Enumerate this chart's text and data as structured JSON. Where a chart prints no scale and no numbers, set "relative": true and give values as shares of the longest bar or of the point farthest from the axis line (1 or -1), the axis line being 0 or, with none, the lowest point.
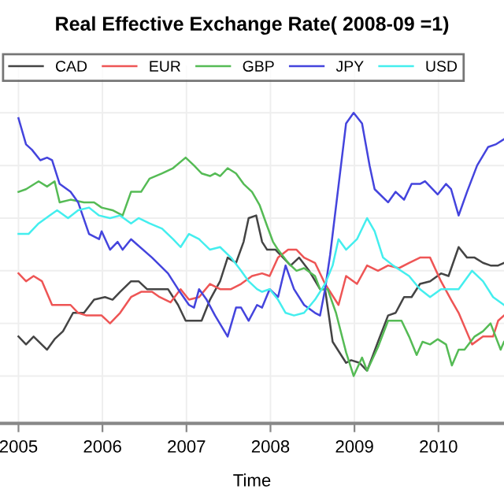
{
  "chart_data": {
    "type": "line",
    "title": "Real Effective Exchange Rate( 2008-09 =1)",
    "xlabel": "Time",
    "relative": true,
    "xlim": [
      2004.78,
      2010.78
    ],
    "xticks": [
      2005,
      2006,
      2007,
      2008,
      2009,
      2010
    ],
    "grid": true,
    "legend": "top left",
    "line_style": "solid",
    "series": [
      {
        "name": "CAD",
        "color": "#444444",
        "x": [
          2005.0,
          2005.09,
          2005.18,
          2005.34,
          2005.43,
          2005.53,
          2005.65,
          2005.78,
          2005.9,
          2006.03,
          2006.12,
          2006.21,
          2006.34,
          2006.43,
          2006.53,
          2006.65,
          2006.78,
          2006.9,
          2006.99,
          2007.09,
          2007.18,
          2007.28,
          2007.4,
          2007.49,
          2007.59,
          2007.68,
          2007.74,
          2007.83,
          2007.9,
          2007.96,
          2008.06,
          2008.15,
          2008.24,
          2008.34,
          2008.46,
          2008.59,
          2008.65,
          2008.74,
          2008.9,
          2008.96,
          2009.06,
          2009.15,
          2009.21,
          2009.28,
          2009.4,
          2009.49,
          2009.59,
          2009.68,
          2009.78,
          2009.9,
          2010.03,
          2010.12,
          2010.24,
          2010.34,
          2010.43,
          2010.53,
          2010.62,
          2010.71,
          2010.78
        ],
        "values": [
          0.15,
          0.12,
          0.15,
          0.1,
          0.14,
          0.17,
          0.24,
          0.24,
          0.29,
          0.3,
          0.29,
          0.32,
          0.36,
          0.36,
          0.33,
          0.33,
          0.33,
          0.27,
          0.21,
          0.21,
          0.21,
          0.29,
          0.36,
          0.45,
          0.43,
          0.51,
          0.6,
          0.61,
          0.51,
          0.48,
          0.48,
          0.45,
          0.42,
          0.45,
          0.4,
          0.33,
          0.33,
          0.13,
          0.05,
          0.06,
          0.05,
          0.02,
          0.07,
          0.13,
          0.23,
          0.24,
          0.3,
          0.3,
          0.35,
          0.36,
          0.39,
          0.38,
          0.49,
          0.45,
          0.45,
          0.43,
          0.42,
          0.42,
          0.43
        ]
      },
      {
        "name": "EUR",
        "color": "#ee5555",
        "x": [
          2005.0,
          2005.09,
          2005.18,
          2005.28,
          2005.4,
          2005.53,
          2005.62,
          2005.71,
          2005.81,
          2005.93,
          2005.99,
          2006.09,
          2006.21,
          2006.34,
          2006.46,
          2006.59,
          2006.68,
          2006.81,
          2006.93,
          2007.03,
          2007.15,
          2007.28,
          2007.4,
          2007.53,
          2007.65,
          2007.78,
          2007.9,
          2007.99,
          2008.09,
          2008.21,
          2008.31,
          2008.4,
          2008.53,
          2008.65,
          2008.81,
          2008.9,
          2009.03,
          2009.15,
          2009.28,
          2009.4,
          2009.53,
          2009.65,
          2009.78,
          2009.9,
          2010.03,
          2010.15,
          2010.24,
          2010.4,
          2010.53,
          2010.65,
          2010.71,
          2010.78
        ],
        "values": [
          0.39,
          0.36,
          0.38,
          0.36,
          0.27,
          0.27,
          0.27,
          0.24,
          0.23,
          0.23,
          0.23,
          0.2,
          0.24,
          0.3,
          0.32,
          0.32,
          0.3,
          0.28,
          0.33,
          0.29,
          0.3,
          0.35,
          0.33,
          0.33,
          0.35,
          0.38,
          0.39,
          0.38,
          0.45,
          0.48,
          0.48,
          0.45,
          0.43,
          0.35,
          0.27,
          0.38,
          0.35,
          0.42,
          0.4,
          0.42,
          0.41,
          0.43,
          0.45,
          0.45,
          0.36,
          0.29,
          0.24,
          0.12,
          0.15,
          0.15,
          0.21,
          0.23
        ]
      },
      {
        "name": "GBP",
        "color": "#55bb55",
        "x": [
          2005.0,
          2005.09,
          2005.24,
          2005.34,
          2005.43,
          2005.49,
          2005.62,
          2005.78,
          2005.9,
          2005.99,
          2006.12,
          2006.24,
          2006.34,
          2006.46,
          2006.56,
          2006.71,
          2006.84,
          2006.99,
          2007.09,
          2007.18,
          2007.28,
          2007.34,
          2007.4,
          2007.49,
          2007.59,
          2007.68,
          2007.78,
          2007.87,
          2007.96,
          2008.03,
          2008.09,
          2008.21,
          2008.31,
          2008.4,
          2008.53,
          2008.59,
          2008.68,
          2008.78,
          2008.9,
          2008.99,
          2009.09,
          2009.15,
          2009.28,
          2009.4,
          2009.56,
          2009.65,
          2009.74,
          2009.81,
          2009.9,
          2009.99,
          2010.09,
          2010.16,
          2010.24,
          2010.31,
          2010.43,
          2010.53,
          2010.62,
          2010.74,
          2010.78
        ],
        "values": [
          0.7,
          0.71,
          0.74,
          0.72,
          0.74,
          0.66,
          0.67,
          0.66,
          0.66,
          0.64,
          0.63,
          0.61,
          0.7,
          0.7,
          0.75,
          0.77,
          0.79,
          0.83,
          0.8,
          0.77,
          0.76,
          0.77,
          0.76,
          0.79,
          0.77,
          0.73,
          0.7,
          0.65,
          0.57,
          0.51,
          0.48,
          0.43,
          0.4,
          0.41,
          0.38,
          0.33,
          0.33,
          0.24,
          0.09,
          0.0,
          0.07,
          0.02,
          0.11,
          0.21,
          0.21,
          0.15,
          0.08,
          0.13,
          0.12,
          0.14,
          0.12,
          0.04,
          0.1,
          0.1,
          0.15,
          0.17,
          0.2,
          0.1,
          0.13
        ]
      },
      {
        "name": "JPY",
        "color": "#4444dd",
        "x": [
          2005.0,
          2005.09,
          2005.16,
          2005.26,
          2005.34,
          2005.4,
          2005.49,
          2005.62,
          2005.71,
          2005.84,
          2005.96,
          2005.99,
          2006.09,
          2006.18,
          2006.24,
          2006.34,
          2006.59,
          2006.78,
          2006.9,
          2007.03,
          2007.09,
          2007.15,
          2007.24,
          2007.34,
          2007.49,
          2007.59,
          2007.65,
          2007.74,
          2007.84,
          2007.9,
          2007.99,
          2008.09,
          2008.18,
          2008.28,
          2008.4,
          2008.53,
          2008.59,
          2008.65,
          2008.71,
          2008.9,
          2008.99,
          2009.09,
          2009.18,
          2009.24,
          2009.4,
          2009.49,
          2009.59,
          2009.68,
          2009.78,
          2009.84,
          2009.99,
          2010.09,
          2010.15,
          2010.24,
          2010.34,
          2010.46,
          2010.59,
          2010.68,
          2010.78
        ],
        "values": [
          0.98,
          0.88,
          0.86,
          0.82,
          0.83,
          0.82,
          0.73,
          0.7,
          0.66,
          0.54,
          0.52,
          0.55,
          0.48,
          0.51,
          0.48,
          0.52,
          0.45,
          0.39,
          0.33,
          0.27,
          0.26,
          0.33,
          0.29,
          0.23,
          0.15,
          0.26,
          0.26,
          0.21,
          0.27,
          0.26,
          0.33,
          0.3,
          0.42,
          0.33,
          0.27,
          0.24,
          0.23,
          0.33,
          0.46,
          0.96,
          1.0,
          0.96,
          0.8,
          0.71,
          0.66,
          0.7,
          0.67,
          0.73,
          0.73,
          0.74,
          0.69,
          0.73,
          0.71,
          0.61,
          0.7,
          0.8,
          0.87,
          0.88,
          0.9
        ]
      },
      {
        "name": "USD",
        "color": "#44eeee",
        "x": [
          2005.0,
          2005.12,
          2005.24,
          2005.37,
          2005.46,
          2005.59,
          2005.71,
          2005.84,
          2005.96,
          2006.09,
          2006.21,
          2006.34,
          2006.43,
          2006.56,
          2006.71,
          2006.84,
          2006.93,
          2007.03,
          2007.15,
          2007.28,
          2007.4,
          2007.53,
          2007.65,
          2007.74,
          2007.84,
          2007.9,
          2007.99,
          2008.09,
          2008.18,
          2008.28,
          2008.4,
          2008.53,
          2008.65,
          2008.74,
          2008.81,
          2008.9,
          2009.03,
          2009.15,
          2009.24,
          2009.34,
          2009.46,
          2009.65,
          2009.78,
          2009.9,
          2010.03,
          2010.15,
          2010.24,
          2010.4,
          2010.53,
          2010.65,
          2010.78
        ],
        "values": [
          0.54,
          0.54,
          0.58,
          0.61,
          0.63,
          0.6,
          0.63,
          0.64,
          0.61,
          0.6,
          0.61,
          0.58,
          0.6,
          0.58,
          0.56,
          0.52,
          0.49,
          0.54,
          0.52,
          0.48,
          0.49,
          0.45,
          0.4,
          0.36,
          0.33,
          0.32,
          0.33,
          0.29,
          0.24,
          0.23,
          0.24,
          0.29,
          0.35,
          0.42,
          0.52,
          0.48,
          0.52,
          0.6,
          0.55,
          0.45,
          0.42,
          0.38,
          0.33,
          0.3,
          0.33,
          0.33,
          0.33,
          0.4,
          0.36,
          0.3,
          0.27
        ]
      }
    ]
  }
}
